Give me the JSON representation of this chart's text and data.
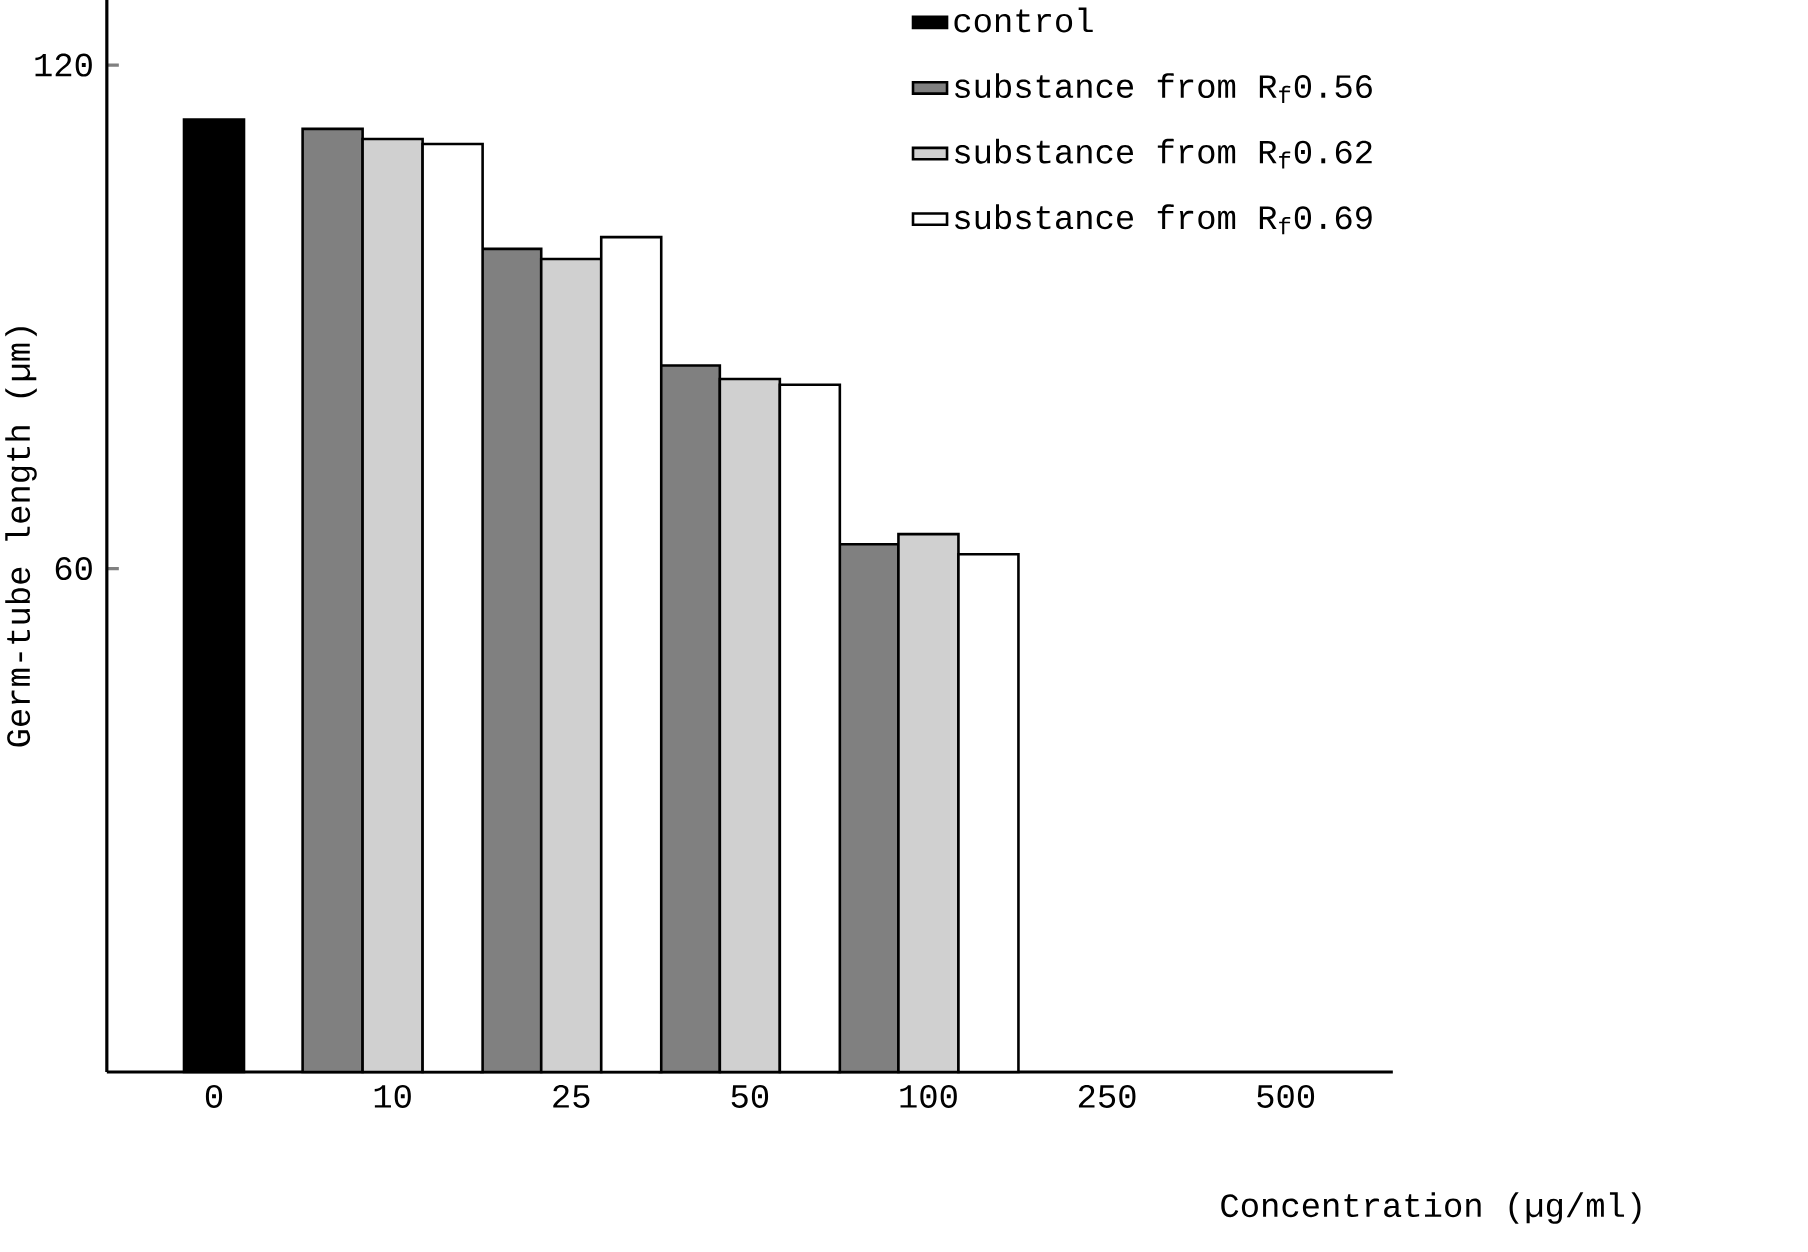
{
  "chart_data": {
    "type": "bar",
    "xlabel": "Concentration (µg/ml)",
    "ylabel": "Germ-tube length (µm)",
    "categories": [
      "0",
      "10",
      "25",
      "50",
      "100",
      "250",
      "500"
    ],
    "series": [
      {
        "name": "control",
        "color": "#000000",
        "values": [
          113.5,
          null,
          null,
          null,
          null,
          null,
          null
        ]
      },
      {
        "name": "substance from R$_{f}$0.56",
        "color": "#808080",
        "values": [
          null,
          112.4,
          98.1,
          84.2,
          62.9,
          null,
          null
        ]
      },
      {
        "name": "substance from R$_{f}$0.62",
        "color": "#d0d0d0",
        "values": [
          null,
          111.2,
          96.9,
          82.6,
          64.1,
          null,
          null
        ]
      },
      {
        "name": "substance from R$_{f}$0.69",
        "color": "#ffffff",
        "values": [
          null,
          110.6,
          99.5,
          81.9,
          61.7,
          null,
          null
        ]
      }
    ],
    "ylim": [
      0,
      128
    ],
    "yticks": [
      60,
      120
    ],
    "legend": "top right",
    "grid": false
  }
}
